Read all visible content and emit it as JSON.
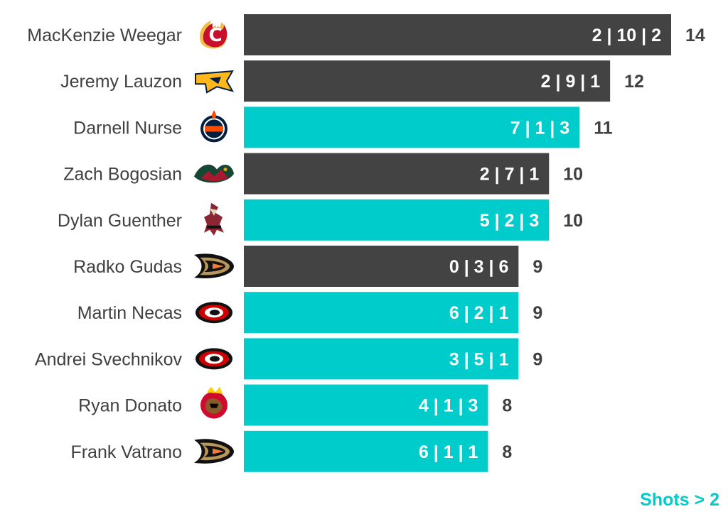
{
  "chart_data": {
    "type": "bar",
    "orientation": "horizontal",
    "categories": [
      "MacKenzie Weegar",
      "Jeremy Lauzon",
      "Darnell Nurse",
      "Zach Bogosian",
      "Dylan Guenther",
      "Radko Gudas",
      "Martin Necas",
      "Andrei Svechnikov",
      "Ryan Donato",
      "Frank Vatrano"
    ],
    "values": [
      14,
      12,
      11,
      10,
      10,
      9,
      9,
      9,
      8,
      8
    ],
    "bar_labels": [
      "2 | 10 | 2",
      "2 | 9 | 1",
      "7 | 1 | 3",
      "2 | 7 | 1",
      "5 | 2 | 3",
      "0 | 3 | 6",
      "6 | 2 | 1",
      "3 | 5 | 1",
      "4 | 1 | 3",
      "6 | 1 | 1"
    ],
    "highlight": [
      false,
      false,
      true,
      false,
      true,
      false,
      true,
      true,
      true,
      true
    ],
    "team_icons": [
      "calgary-flames-logo-icon",
      "nashville-predators-logo-icon",
      "edmonton-oilers-logo-icon",
      "minnesota-wild-logo-icon",
      "arizona-coyotes-logo-icon",
      "anaheim-ducks-logo-icon",
      "carolina-hurricanes-logo-icon",
      "carolina-hurricanes-logo-icon",
      "chicago-blackhawks-logo-icon",
      "anaheim-ducks-logo-icon"
    ],
    "xlim": [
      0,
      14
    ],
    "grid": false,
    "legend_placement": "bottom-right",
    "colors": {
      "default": "#434343",
      "highlight": "#00cccc",
      "text": "#404040",
      "bar_text": "#ffffff"
    }
  },
  "legend_note": "Shots > 2"
}
